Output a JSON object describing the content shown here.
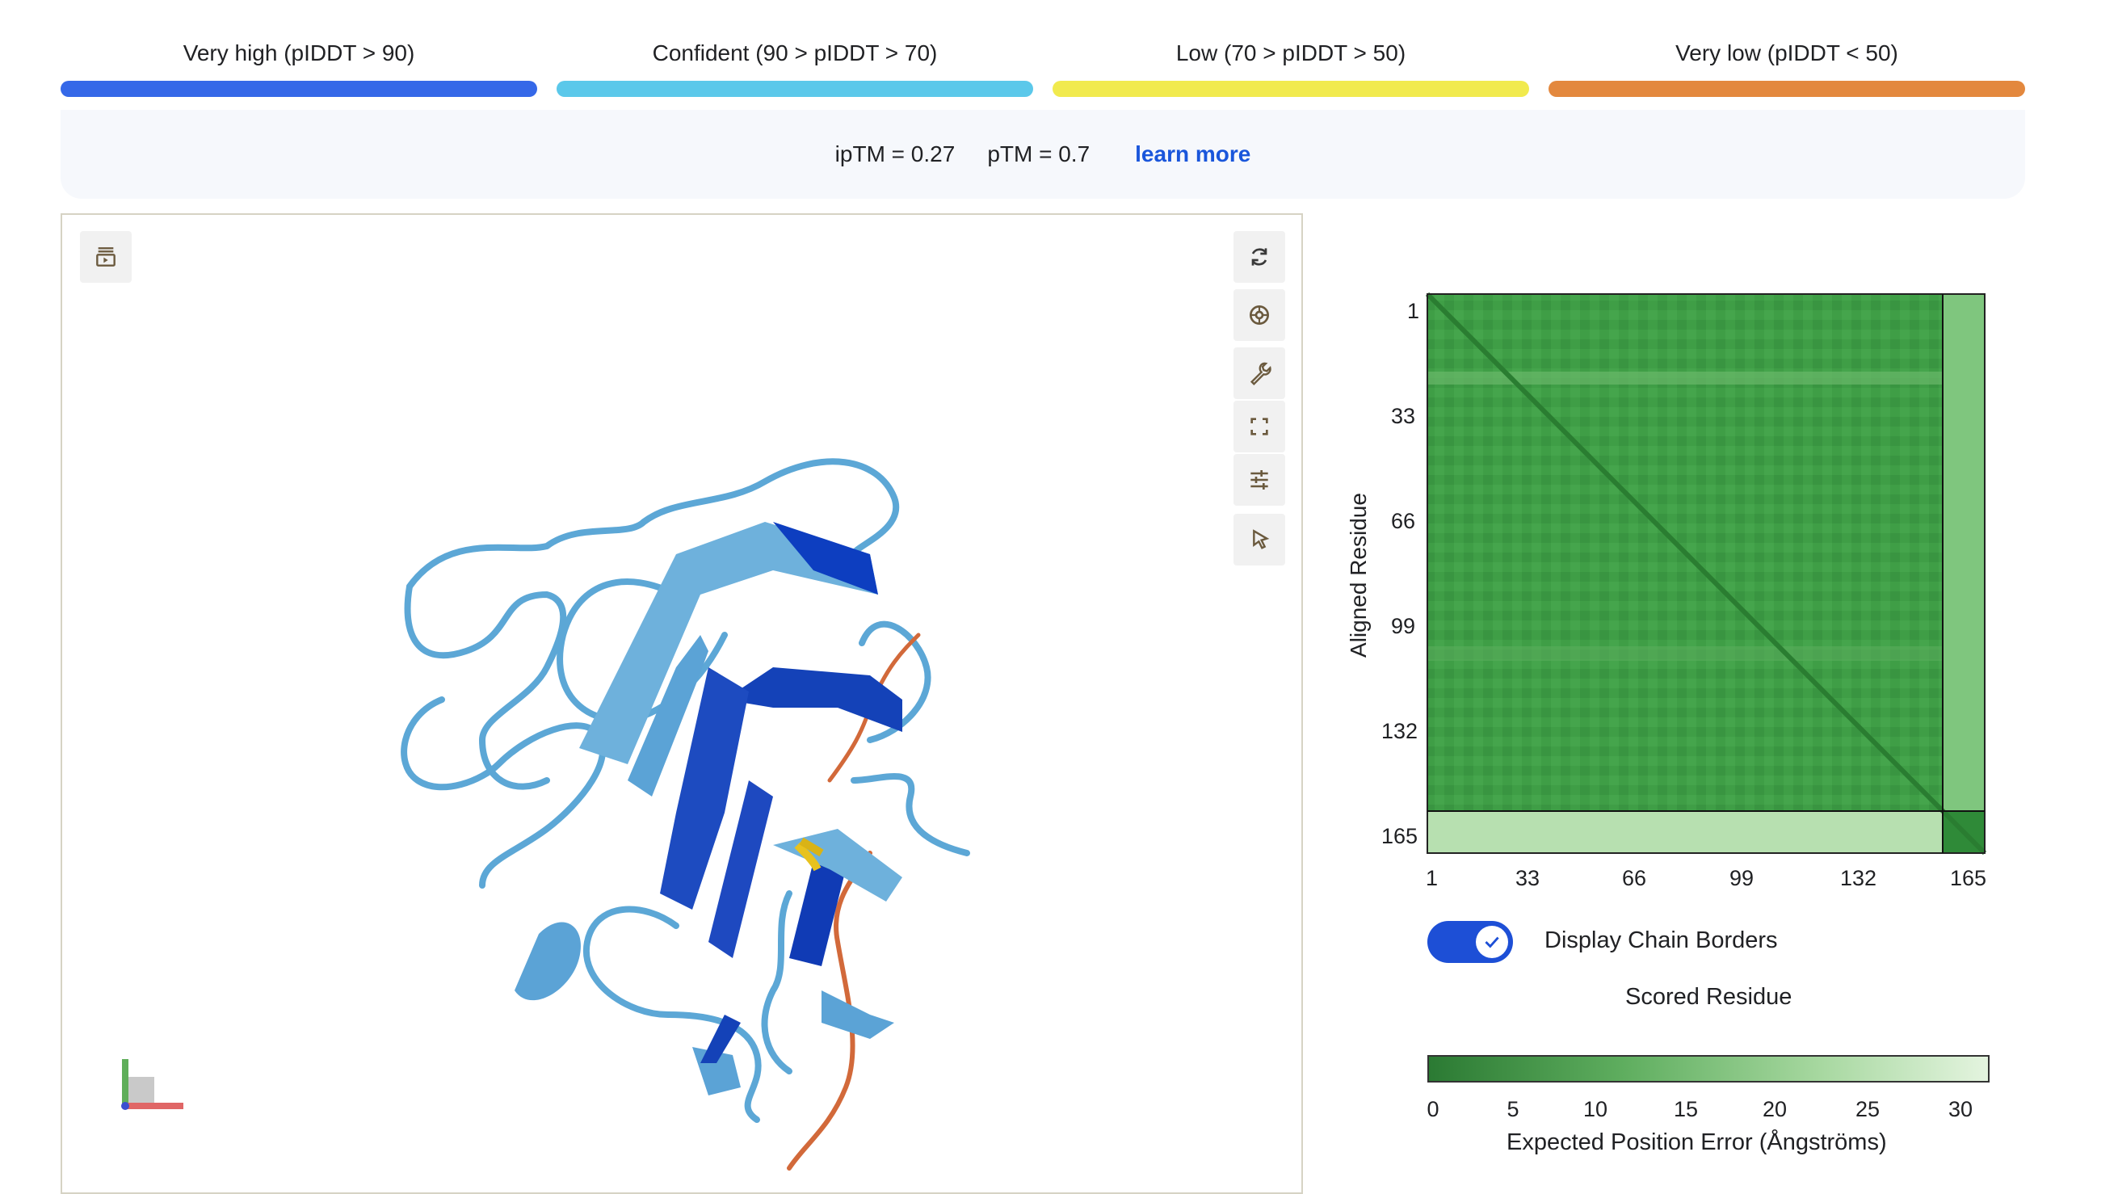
{
  "legend": [
    {
      "label": "Very high (pIDDT > 90)",
      "color": "#3568e8"
    },
    {
      "label": "Confident (90 > pIDDT > 70)",
      "color": "#5bc8ea"
    },
    {
      "label": "Low (70 > pIDDT > 50)",
      "color": "#f1ea4e"
    },
    {
      "label": "Very low (pIDDT < 50)",
      "color": "#e3883e"
    }
  ],
  "metrics": {
    "iptm": "ipTM = 0.27",
    "ptm": "pTM = 0.7",
    "learn_more": "learn more"
  },
  "viewer": {
    "toolbar": [
      {
        "name": "reset-view-icon"
      },
      {
        "name": "screenshot-icon"
      },
      {
        "name": "wrench-icon"
      },
      {
        "name": "fullscreen-icon"
      },
      {
        "name": "settings-sliders-icon"
      },
      {
        "name": "select-pointer-icon"
      }
    ],
    "sequence_panel_icon": "sequence-panel-icon"
  },
  "pae": {
    "y_axis_label": "Aligned Residue",
    "x_axis_label": "Scored Residue",
    "y_ticks": [
      "1",
      "33",
      "66",
      "99",
      "132",
      "165"
    ],
    "x_ticks": [
      "1",
      "33",
      "66",
      "99",
      "132",
      "165"
    ],
    "toggle_label": "Display Chain Borders",
    "toggle_on": true,
    "colorbar_ticks": [
      "0",
      "5",
      "10",
      "15",
      "20",
      "25",
      "30"
    ],
    "colorbar_title": "Expected Position Error (Ångströms)"
  }
}
